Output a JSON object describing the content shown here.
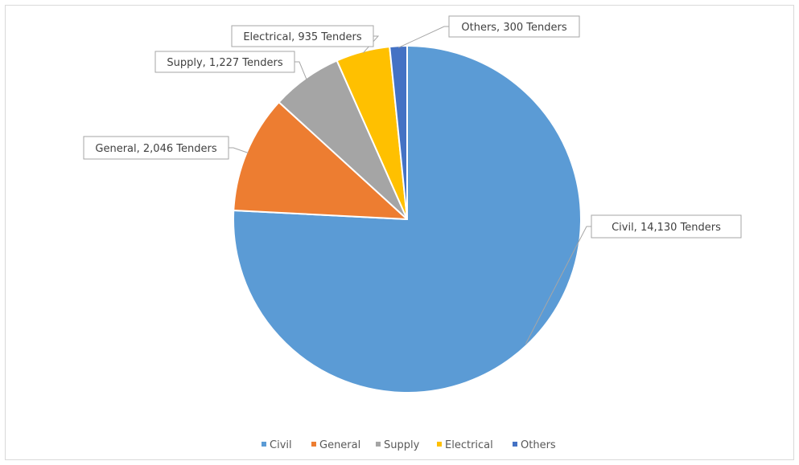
{
  "chart_data": {
    "type": "pie",
    "unit": "Tenders",
    "categories": [
      "Civil",
      "General",
      "Supply",
      "Electrical",
      "Others"
    ],
    "values": [
      14130,
      2046,
      1227,
      935,
      300
    ],
    "colors": [
      "#5B9BD5",
      "#ED7D31",
      "#A5A5A5",
      "#FFC000",
      "#4472C4"
    ],
    "data_labels": [
      "Civil, 14,130 Tenders",
      "General, 2,046 Tenders",
      "Supply, 1,227 Tenders",
      "Electrical, 935 Tenders",
      "Others, 300 Tenders"
    ],
    "legend": {
      "position": "bottom",
      "entries": [
        "Civil",
        "General",
        "Supply",
        "Electrical",
        "Others"
      ]
    }
  }
}
